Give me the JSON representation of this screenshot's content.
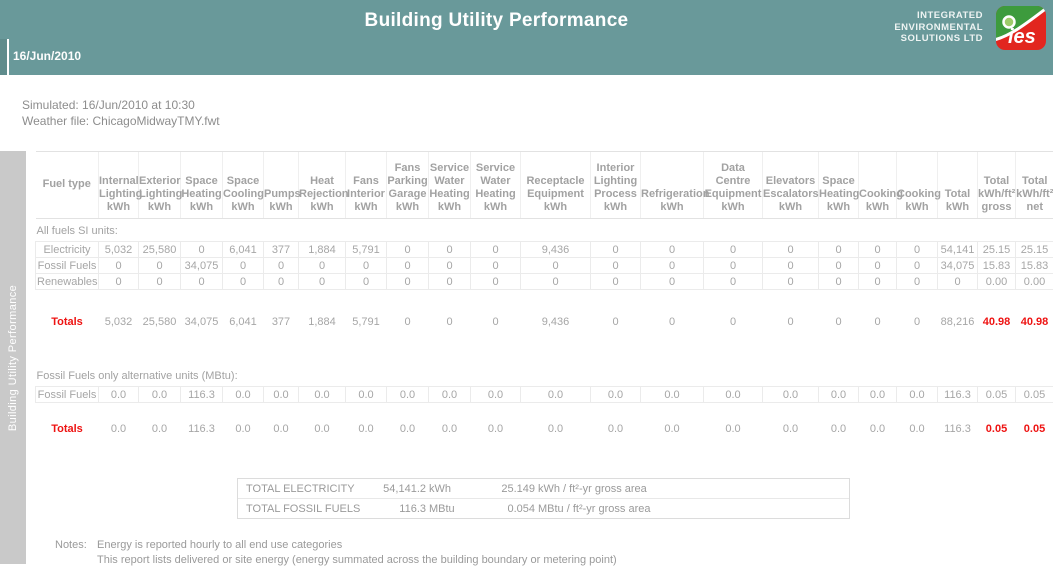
{
  "header": {
    "title": "Building Utility Performance",
    "date": "16/Jun/2010",
    "company": {
      "lines": [
        "INTEGRATED",
        "ENVIRONMENTAL",
        "SOLUTIONS LTD"
      ]
    },
    "logo_text": "ies"
  },
  "sidebar": {
    "label": "Building Utility Performance"
  },
  "meta": {
    "simulated": "Simulated: 16/Jun/2010 at 10:30",
    "weather_file": "Weather file: ChicagoMidwayTMY.fwt"
  },
  "table": {
    "corner_header": "Fuel type",
    "columns": [
      "Internal\nLighting\nkWh",
      "Exterior\nLighting\nkWh",
      "Space\nHeating\nkWh",
      "Space\nCooling\nkWh",
      "Pumps\nkWh",
      "Heat\nRejection\nkWh",
      "Fans\nInterior\nkWh",
      "Fans\nParking\nGarage\nkWh",
      "Service\nWater\nHeating\nkWh",
      "Service\nWater\nHeating\nkWh",
      "Receptacle\nEquipment\nkWh",
      "Interior\nLighting\nProcess\nkWh",
      "Refrigeration\nkWh",
      "Data\nCentre\nEquipment\nkWh",
      "Elevators\nEscalators\nkWh",
      "Space\nHeating\nkWh",
      "Cooking\nkWh",
      "Cooking\nkWh",
      "Total\nkWh",
      "Total\nkWh/ft²\ngross",
      "Total\nkWh/ft²\nnet"
    ],
    "sections": [
      {
        "label": "All fuels SI units:",
        "rows": [
          {
            "label": "Electricity",
            "values": [
              "5,032",
              "25,580",
              "0",
              "6,041",
              "377",
              "1,884",
              "5,791",
              "0",
              "0",
              "0",
              "9,436",
              "0",
              "0",
              "0",
              "0",
              "0",
              "0",
              "0",
              "54,141",
              "25.15",
              "25.15"
            ]
          },
          {
            "label": "Fossil Fuels",
            "values": [
              "0",
              "0",
              "34,075",
              "0",
              "0",
              "0",
              "0",
              "0",
              "0",
              "0",
              "0",
              "0",
              "0",
              "0",
              "0",
              "0",
              "0",
              "0",
              "34,075",
              "15.83",
              "15.83"
            ]
          },
          {
            "label": "Renewables",
            "values": [
              "0",
              "0",
              "0",
              "0",
              "0",
              "0",
              "0",
              "0",
              "0",
              "0",
              "0",
              "0",
              "0",
              "0",
              "0",
              "0",
              "0",
              "0",
              "0",
              "0.00",
              "0.00"
            ]
          }
        ],
        "totals": {
          "label": "Totals",
          "values": [
            "5,032",
            "25,580",
            "34,075",
            "6,041",
            "377",
            "1,884",
            "5,791",
            "0",
            "0",
            "0",
            "9,436",
            "0",
            "0",
            "0",
            "0",
            "0",
            "0",
            "0",
            "88,216",
            "40.98",
            "40.98"
          ],
          "highlight_last": 2
        }
      },
      {
        "label": "Fossil Fuels only alternative units (MBtu):",
        "rows": [
          {
            "label": "Fossil Fuels",
            "values": [
              "0.0",
              "0.0",
              "116.3",
              "0.0",
              "0.0",
              "0.0",
              "0.0",
              "0.0",
              "0.0",
              "0.0",
              "0.0",
              "0.0",
              "0.0",
              "0.0",
              "0.0",
              "0.0",
              "0.0",
              "0.0",
              "116.3",
              "0.05",
              "0.05"
            ]
          }
        ],
        "totals": {
          "label": "Totals",
          "values": [
            "0.0",
            "0.0",
            "116.3",
            "0.0",
            "0.0",
            "0.0",
            "0.0",
            "0.0",
            "0.0",
            "0.0",
            "0.0",
            "0.0",
            "0.0",
            "0.0",
            "0.0",
            "0.0",
            "0.0",
            "0.0",
            "116.3",
            "0.05",
            "0.05"
          ],
          "highlight_last": 2
        }
      }
    ]
  },
  "summary": {
    "rows": [
      {
        "label": "TOTAL ELECTRICITY",
        "value": "54,141.2",
        "unit": "kWh",
        "per_area_value": "25.149",
        "per_area_unit": "kWh / ft²-yr gross area"
      },
      {
        "label": "TOTAL FOSSIL FUELS",
        "value": "116.3",
        "unit": "MBtu",
        "per_area_value": "0.054",
        "per_area_unit": "MBtu / ft²-yr gross area"
      }
    ]
  },
  "notes": {
    "label": "Notes:",
    "lines": [
      "Energy is reported hourly to all end use categories",
      "This report lists delivered or site energy (energy summated across the building boundary or metering point)"
    ]
  }
}
